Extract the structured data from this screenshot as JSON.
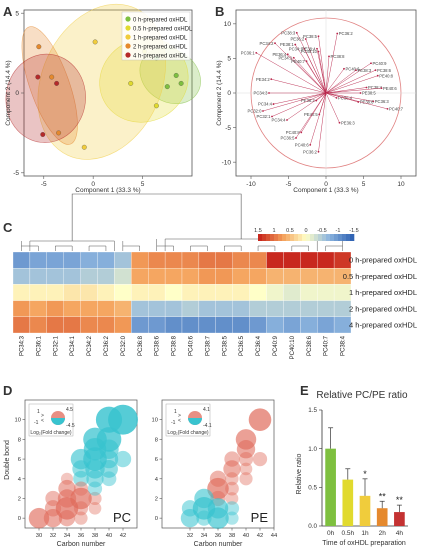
{
  "chart_data": [
    {
      "panel": "A",
      "type": "scatter",
      "xlabel": "Component 1  (33.3 %)",
      "ylabel": "Component 2  (14.4 %)",
      "xlim": [
        -7,
        10
      ],
      "ylim": [
        -5.2,
        5.2
      ],
      "xticks": [
        -5,
        0,
        5
      ],
      "yticks": [
        -5,
        0,
        5
      ],
      "legend_position": "top-right",
      "series": [
        {
          "name": "0 h-prepared oxHDL",
          "color": "#7ec03f",
          "x": [
            6.4,
            7.5,
            8.4,
            8.9
          ],
          "y": [
            2.2,
            0.4,
            1.1,
            0.6
          ]
        },
        {
          "name": "0.5 h-prepared oxHDL",
          "color": "#e1da2e",
          "x": [
            3.8,
            5.2,
            6.4
          ],
          "y": [
            0.6,
            2.6,
            -0.8
          ]
        },
        {
          "name": "1 h-prepared oxHDL",
          "color": "#f0cc3c",
          "x": [
            0.2,
            3.3,
            -0.9
          ],
          "y": [
            3.2,
            2.3,
            -3.4
          ]
        },
        {
          "name": "2 h-prepared oxHDL",
          "color": "#e5892d",
          "x": [
            -5.5,
            -4.2,
            -3.5
          ],
          "y": [
            2.9,
            1.0,
            -2.5
          ]
        },
        {
          "name": "4 h-prepared oxHDL",
          "color": "#b52a2a",
          "x": [
            -5.6,
            -5.1,
            -3.7
          ],
          "y": [
            1.0,
            -2.6,
            0.6
          ]
        }
      ]
    },
    {
      "panel": "B",
      "type": "scatter",
      "subtype": "loading-plot",
      "xlabel": "Component 1  (33.3 %)",
      "ylabel": "Component 2  (14.4 %)",
      "xlim": [
        -12,
        12
      ],
      "ylim": [
        -12,
        12
      ],
      "xticks": [
        -10,
        -5,
        0,
        5,
        10
      ],
      "yticks": [
        -10,
        -5,
        0,
        5,
        10
      ],
      "arrow_color": "#b8244a",
      "points": [
        {
          "label": "PC36:2",
          "x": 1.5,
          "y": 8.6
        },
        {
          "label": "PC38:3",
          "x": -3.9,
          "y": 8.7
        },
        {
          "label": "PC38:5",
          "x": -1.0,
          "y": 8.2
        },
        {
          "label": "PE36:2",
          "x": -2.7,
          "y": 7.8
        },
        {
          "label": "PC34:2",
          "x": -6.8,
          "y": 7.2
        },
        {
          "label": "PE38:1",
          "x": -4.1,
          "y": 7.0
        },
        {
          "label": "PC34:1",
          "x": -2.9,
          "y": 6.4
        },
        {
          "label": "PE38:4",
          "x": -1.2,
          "y": 6.4
        },
        {
          "label": "PC36:1",
          "x": -9.3,
          "y": 5.8
        },
        {
          "label": "PE36:4",
          "x": -5.1,
          "y": 5.6
        },
        {
          "label": "PE34:1",
          "x": -4.3,
          "y": 5.1
        },
        {
          "label": "PC40:10",
          "x": -1.0,
          "y": 6.0
        },
        {
          "label": "PE40:7",
          "x": -2.6,
          "y": 4.6
        },
        {
          "label": "PC38:8",
          "x": 0.4,
          "y": 5.3
        },
        {
          "label": "PC40:6",
          "x": 2.4,
          "y": 3.5
        },
        {
          "label": "PC40:9",
          "x": 6.0,
          "y": 4.3
        },
        {
          "label": "PE38:3",
          "x": 4.0,
          "y": 3.3
        },
        {
          "label": "PC38:6",
          "x": 6.6,
          "y": 3.3
        },
        {
          "label": "PE40:8",
          "x": 6.9,
          "y": 2.5
        },
        {
          "label": "PE34:2",
          "x": -7.3,
          "y": 2.0
        },
        {
          "label": "PC38:4",
          "x": 5.4,
          "y": 0.8
        },
        {
          "label": "PE40:6",
          "x": 7.4,
          "y": 0.7
        },
        {
          "label": "PC34:3",
          "x": -7.6,
          "y": 0.0
        },
        {
          "label": "PE38:5",
          "x": 4.6,
          "y": 0.0
        },
        {
          "label": "PC36:4",
          "x": 1.4,
          "y": -0.7
        },
        {
          "label": "PC36:3",
          "x": 6.3,
          "y": -1.2
        },
        {
          "label": "PE38:6",
          "x": 4.3,
          "y": -1.3
        },
        {
          "label": "PC40:7",
          "x": 8.2,
          "y": -2.3
        },
        {
          "label": "PC34:4",
          "x": -7.0,
          "y": -1.6
        },
        {
          "label": "PE38:2",
          "x": -1.3,
          "y": -1.1
        },
        {
          "label": "PC32:0",
          "x": -8.4,
          "y": -2.6
        },
        {
          "label": "PC32:1",
          "x": -7.2,
          "y": -3.4
        },
        {
          "label": "PE40:5",
          "x": -0.9,
          "y": -3.1
        },
        {
          "label": "PC34:4",
          "x": -5.2,
          "y": -3.9
        },
        {
          "label": "PE36:3",
          "x": 1.8,
          "y": -4.3
        },
        {
          "label": "PC40:8",
          "x": -3.3,
          "y": -5.7
        },
        {
          "label": "PC36:5",
          "x": -4.0,
          "y": -6.5
        },
        {
          "label": "PC40:6",
          "x": -2.1,
          "y": -7.5
        },
        {
          "label": "PC36:2",
          "x": -1.0,
          "y": -8.5
        }
      ]
    },
    {
      "panel": "C",
      "type": "heatmap",
      "colorbar_ticks": [
        "1.5",
        "1",
        "0.5",
        "0",
        "-0.5",
        "-1",
        "-1.5"
      ],
      "rows": [
        "0 h-prepared oxHDL",
        "0.5 h-prepared oxHDL",
        "1 h-prepared oxHDL",
        "2 h-prepared oxHDL",
        "4 h-prepared oxHDL"
      ],
      "columns": [
        "PC34:3",
        "PC36:1",
        "PC32:1",
        "PC34:1",
        "PC34:2",
        "PC36:2",
        "PC32:0",
        "PC36:8",
        "PC38:6",
        "PC38:8",
        "PC40:6",
        "PC38:7",
        "PC38:5",
        "PC36:5",
        "PC36:4",
        "PC40:9",
        "PC40:10",
        "PC38:6",
        "PC40:7",
        "PC38:4"
      ],
      "values": [
        [
          -1.0,
          -0.9,
          -0.9,
          -0.9,
          -0.8,
          -0.8,
          -0.6,
          0.8,
          0.9,
          0.9,
          0.9,
          1.0,
          1.0,
          0.9,
          0.9,
          1.6,
          1.6,
          1.5,
          1.5,
          1.4
        ],
        [
          -0.6,
          -0.6,
          -0.6,
          -0.6,
          -0.5,
          -0.5,
          -0.3,
          0.7,
          0.7,
          0.7,
          0.7,
          0.8,
          0.8,
          0.7,
          0.7,
          0.6,
          0.6,
          0.6,
          0.6,
          0.6
        ],
        [
          0.1,
          0.1,
          0.1,
          0.2,
          0.2,
          0.1,
          0.0,
          0.1,
          0.1,
          0.0,
          0.1,
          0.1,
          0.1,
          0.1,
          0.0,
          -0.1,
          -0.2,
          -0.1,
          -0.1,
          -0.1
        ],
        [
          0.8,
          0.7,
          0.8,
          0.7,
          0.7,
          0.7,
          0.6,
          -0.6,
          -0.6,
          -0.6,
          -0.5,
          -0.6,
          -0.6,
          -0.6,
          -0.5,
          -0.5,
          -0.5,
          -0.5,
          -0.5,
          -0.5
        ],
        [
          1.0,
          0.9,
          1.0,
          1.0,
          0.9,
          0.9,
          0.8,
          -1.0,
          -1.0,
          -1.1,
          -1.1,
          -1.1,
          -1.1,
          -1.1,
          -1.0,
          -0.8,
          -0.9,
          -0.8,
          -0.9,
          -0.8
        ]
      ]
    },
    {
      "panel": "D",
      "type": "scatter",
      "subtype": "bubble",
      "xlabel": "Carbon number",
      "ylabel": "Double bond",
      "legend_title": "Log₂(Fold change)",
      "plots": [
        {
          "name": "PC",
          "xlim": [
            28,
            44
          ],
          "ylim": [
            -1,
            12
          ],
          "xticks": [
            30,
            32,
            34,
            36,
            38,
            40,
            42
          ],
          "yticks": [
            0,
            2,
            4,
            6,
            8,
            10
          ],
          "legend_top": "4.5",
          "legend_bottom": "-4.5",
          "legend_left": "1",
          "legend_right_top": ">",
          "legend_right_bottom": "<",
          "legend_left_bottom": "-1",
          "points": [
            {
              "x": 40,
              "y": 10,
              "v": 3.5
            },
            {
              "x": 42,
              "y": 10,
              "v": 4.2
            },
            {
              "x": 38,
              "y": 8,
              "v": 3.0
            },
            {
              "x": 40,
              "y": 8,
              "v": 3.2
            },
            {
              "x": 38,
              "y": 7,
              "v": 2.8
            },
            {
              "x": 36,
              "y": 6,
              "v": 2.4
            },
            {
              "x": 38,
              "y": 6,
              "v": 3.0
            },
            {
              "x": 40,
              "y": 6,
              "v": 2.0
            },
            {
              "x": 36,
              "y": 5,
              "v": 1.8
            },
            {
              "x": 38,
              "y": 5,
              "v": 2.2
            },
            {
              "x": 36,
              "y": 4,
              "v": 1.5
            },
            {
              "x": 38,
              "y": 4,
              "v": 1.8
            },
            {
              "x": 40,
              "y": 7,
              "v": 2.2
            },
            {
              "x": 42,
              "y": 6,
              "v": 1.6
            },
            {
              "x": 34,
              "y": 4,
              "v": -0.8
            },
            {
              "x": 34,
              "y": 3,
              "v": -1.8
            },
            {
              "x": 36,
              "y": 3,
              "v": -1.2
            },
            {
              "x": 32,
              "y": 2,
              "v": -1.4
            },
            {
              "x": 34,
              "y": 2,
              "v": -2.0
            },
            {
              "x": 36,
              "y": 2,
              "v": -2.6
            },
            {
              "x": 38,
              "y": 2,
              "v": -1.0
            },
            {
              "x": 32,
              "y": 1,
              "v": -1.6
            },
            {
              "x": 34,
              "y": 1,
              "v": -2.8
            },
            {
              "x": 36,
              "y": 1,
              "v": -1.2
            },
            {
              "x": 32,
              "y": 0,
              "v": -2.0
            },
            {
              "x": 34,
              "y": 0,
              "v": -1.6
            },
            {
              "x": 30,
              "y": 0,
              "v": -2.4
            },
            {
              "x": 38,
              "y": 1,
              "v": -0.9
            },
            {
              "x": 36,
              "y": 0,
              "v": -1.0
            },
            {
              "x": 38,
              "y": 3,
              "v": 1.2
            },
            {
              "x": 40,
              "y": 4,
              "v": 1.3
            },
            {
              "x": 40,
              "y": 5,
              "v": 1.9
            }
          ]
        },
        {
          "name": "PE",
          "xlim": [
            28,
            44
          ],
          "ylim": [
            -1,
            12
          ],
          "xticks": [
            32,
            34,
            36,
            38,
            40,
            42,
            44
          ],
          "yticks": [
            0,
            2,
            4,
            6,
            8,
            10
          ],
          "legend_top": "4.1",
          "legend_bottom": "-4.1",
          "legend_left": "1",
          "legend_right_top": ">",
          "legend_right_bottom": "<",
          "legend_left_bottom": "-1",
          "points": [
            {
              "x": 42,
              "y": 10,
              "v": -2.8
            },
            {
              "x": 40,
              "y": 8,
              "v": -2.4
            },
            {
              "x": 40,
              "y": 7,
              "v": -2.0
            },
            {
              "x": 38,
              "y": 6,
              "v": -1.4
            },
            {
              "x": 40,
              "y": 6,
              "v": -1.2
            },
            {
              "x": 38,
              "y": 5,
              "v": -1.8
            },
            {
              "x": 36,
              "y": 4,
              "v": -1.6
            },
            {
              "x": 38,
              "y": 4,
              "v": -1.0
            },
            {
              "x": 40,
              "y": 5,
              "v": -0.9
            },
            {
              "x": 36,
              "y": 3,
              "v": -2.6
            },
            {
              "x": 38,
              "y": 3,
              "v": -1.1
            },
            {
              "x": 36,
              "y": 2,
              "v": -1.4
            },
            {
              "x": 38,
              "y": 2,
              "v": -0.9
            },
            {
              "x": 34,
              "y": 2,
              "v": 2.2
            },
            {
              "x": 34,
              "y": 1,
              "v": 2.8
            },
            {
              "x": 36,
              "y": 1,
              "v": 2.4
            },
            {
              "x": 32,
              "y": 1,
              "v": 1.6
            },
            {
              "x": 32,
              "y": 0,
              "v": 2.0
            },
            {
              "x": 34,
              "y": 0,
              "v": 1.4
            },
            {
              "x": 36,
              "y": 0,
              "v": 2.6
            },
            {
              "x": 38,
              "y": 1,
              "v": 1.2
            },
            {
              "x": 38,
              "y": 0,
              "v": 1.0
            },
            {
              "x": 40,
              "y": 4,
              "v": -1.0
            },
            {
              "x": 42,
              "y": 6,
              "v": -1.2
            }
          ]
        }
      ]
    },
    {
      "panel": "E",
      "type": "bar",
      "title": "Relative PC/PE ratio",
      "xlabel": "Time of oxHDL preparation",
      "ylabel": "Relative ratio",
      "ylim": [
        0,
        1.5
      ],
      "yticks": [
        0.0,
        0.5,
        1.0,
        1.5
      ],
      "categories": [
        "0h",
        "0.5h",
        "1h",
        "2h",
        "4h"
      ],
      "values": [
        1.0,
        0.6,
        0.39,
        0.23,
        0.18
      ],
      "errors": [
        0.27,
        0.14,
        0.22,
        0.09,
        0.09
      ],
      "significance": [
        "",
        "",
        "*",
        "**",
        "**"
      ],
      "colors": [
        "#7ec03f",
        "#e1da2e",
        "#f0cc3c",
        "#e5892d",
        "#c43232"
      ]
    }
  ],
  "panel_labels": [
    "A",
    "B",
    "C",
    "D",
    "E"
  ]
}
